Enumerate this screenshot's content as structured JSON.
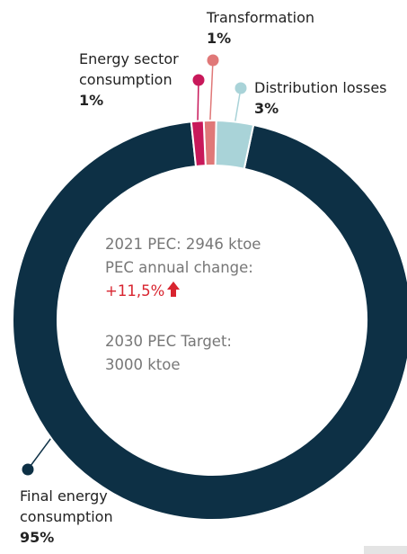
{
  "chart_data": {
    "type": "donut",
    "categories": [
      "Energy sector consumption",
      "Transformation",
      "Distribution losses",
      "Final energy consumption"
    ],
    "values": [
      1,
      1,
      3,
      95
    ],
    "value_labels": [
      "1%",
      "1%",
      "3%",
      "95%"
    ],
    "colors": [
      "#c8185a",
      "#e07878",
      "#a9d3d8",
      "#0d3045"
    ],
    "annotations": [
      "2021 PEC: 2946 ktoe",
      "PEC annual change:",
      "+11,5%",
      "2030 PEC Target:",
      "3000 ktoe"
    ]
  }
}
